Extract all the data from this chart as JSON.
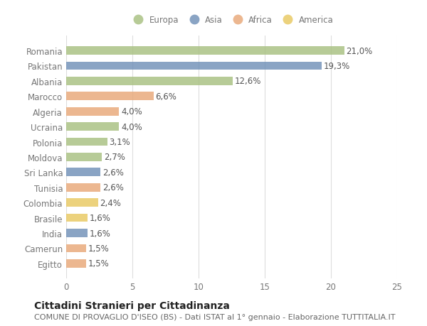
{
  "countries": [
    "Romania",
    "Pakistan",
    "Albania",
    "Marocco",
    "Algeria",
    "Ucraina",
    "Polonia",
    "Moldova",
    "Sri Lanka",
    "Tunisia",
    "Colombia",
    "Brasile",
    "India",
    "Camerun",
    "Egitto"
  ],
  "values": [
    21.0,
    19.3,
    12.6,
    6.6,
    4.0,
    4.0,
    3.1,
    2.7,
    2.6,
    2.6,
    2.4,
    1.6,
    1.6,
    1.5,
    1.5
  ],
  "labels": [
    "21,0%",
    "19,3%",
    "12,6%",
    "6,6%",
    "4,0%",
    "4,0%",
    "3,1%",
    "2,7%",
    "2,6%",
    "2,6%",
    "2,4%",
    "1,6%",
    "1,6%",
    "1,5%",
    "1,5%"
  ],
  "continents": [
    "Europa",
    "Asia",
    "Europa",
    "Africa",
    "Africa",
    "Europa",
    "Europa",
    "Europa",
    "Asia",
    "Africa",
    "America",
    "America",
    "Asia",
    "Africa",
    "Africa"
  ],
  "colors": {
    "Europa": "#a8c080",
    "Asia": "#7090b8",
    "Africa": "#e8a878",
    "America": "#e8c860"
  },
  "legend_labels": [
    "Europa",
    "Asia",
    "Africa",
    "America"
  ],
  "title": "Cittadini Stranieri per Cittadinanza",
  "subtitle": "COMUNE DI PROVAGLIO D'ISEO (BS) - Dati ISTAT al 1° gennaio - Elaborazione TUTTITALIA.IT",
  "xlim": [
    0,
    25
  ],
  "xticks": [
    0,
    5,
    10,
    15,
    20,
    25
  ],
  "background_color": "#ffffff",
  "grid_color": "#dddddd",
  "bar_height": 0.55,
  "title_fontsize": 10,
  "subtitle_fontsize": 8,
  "tick_fontsize": 8.5,
  "label_fontsize": 8.5,
  "ytick_color": "#777777",
  "xtick_color": "#777777",
  "label_color": "#555555"
}
